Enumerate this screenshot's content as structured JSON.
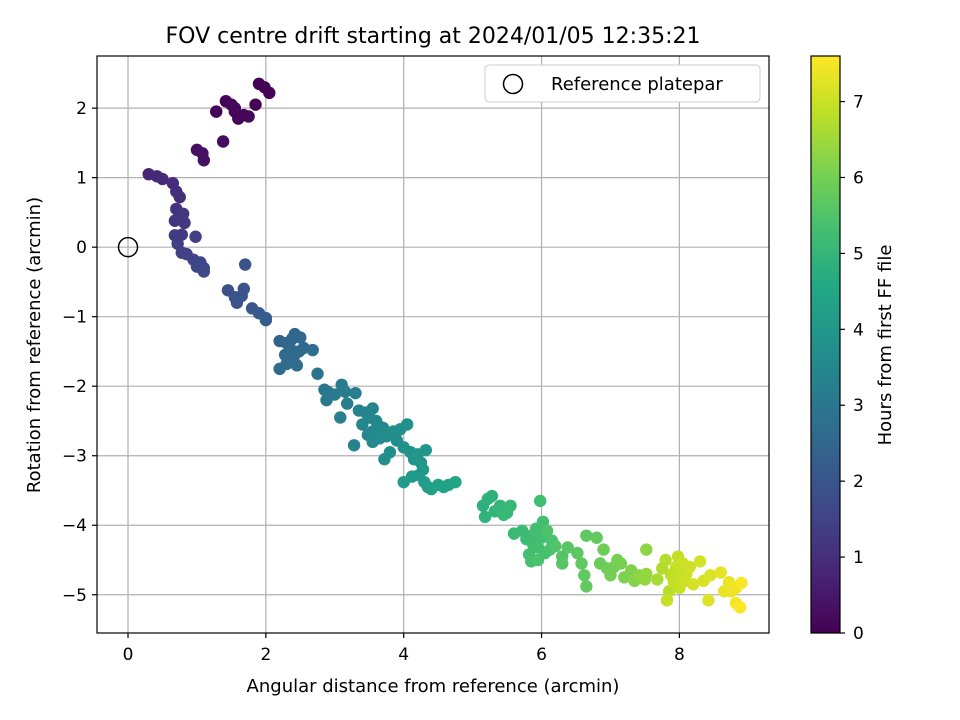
{
  "chart_data": {
    "type": "scatter",
    "title": "FOV centre drift starting at 2024/01/05 12:35:21",
    "xlabel": "Angular distance from reference (arcmin)",
    "ylabel": "Rotation from reference (arcmin)",
    "xlim": [
      -0.45,
      9.3
    ],
    "ylim": [
      -5.55,
      2.75
    ],
    "xticks": [
      0,
      2,
      4,
      6,
      8
    ],
    "yticks": [
      -5,
      -4,
      -3,
      -2,
      -1,
      0,
      1,
      2
    ],
    "xtick_labels": [
      "0",
      "2",
      "4",
      "6",
      "8"
    ],
    "ytick_labels": [
      "−5",
      "−4",
      "−3",
      "−2",
      "−1",
      "0",
      "1",
      "2"
    ],
    "grid": true,
    "legend": {
      "position": "top-right",
      "entries": [
        "Reference platepar"
      ]
    },
    "reference_point": {
      "x": 0,
      "y": 0
    },
    "colorbar": {
      "label": "Hours from first FF file",
      "colormap": "viridis",
      "range": [
        0,
        7.6
      ],
      "ticks": [
        0,
        1,
        2,
        3,
        4,
        5,
        6,
        7
      ],
      "tick_labels": [
        "0",
        "1",
        "2",
        "3",
        "4",
        "5",
        "6",
        "7"
      ]
    },
    "points": [
      [
        1.28,
        1.95,
        0.05
      ],
      [
        1.42,
        2.1,
        0.05
      ],
      [
        1.5,
        2.05,
        0.07
      ],
      [
        1.55,
        1.95,
        0.08
      ],
      [
        1.6,
        1.85,
        0.1
      ],
      [
        1.68,
        1.9,
        0.1
      ],
      [
        1.75,
        1.88,
        0.12
      ],
      [
        1.85,
        2.05,
        0.08
      ],
      [
        1.9,
        2.35,
        0.02
      ],
      [
        1.98,
        2.3,
        0.03
      ],
      [
        2.05,
        2.22,
        0.04
      ],
      [
        1.55,
        2.0,
        0.15
      ],
      [
        1.38,
        1.52,
        0.25
      ],
      [
        1.0,
        1.4,
        0.3
      ],
      [
        1.08,
        1.35,
        0.32
      ],
      [
        1.1,
        1.25,
        0.35
      ],
      [
        0.3,
        1.05,
        0.8
      ],
      [
        0.42,
        1.02,
        0.85
      ],
      [
        0.5,
        0.98,
        0.9
      ],
      [
        0.65,
        0.92,
        0.95
      ],
      [
        0.7,
        0.8,
        1.0
      ],
      [
        0.75,
        0.72,
        1.05
      ],
      [
        0.7,
        0.55,
        1.1
      ],
      [
        0.68,
        0.38,
        1.15
      ],
      [
        0.75,
        0.42,
        1.2
      ],
      [
        0.8,
        0.48,
        1.2
      ],
      [
        0.82,
        0.35,
        1.25
      ],
      [
        0.68,
        0.17,
        1.3
      ],
      [
        0.78,
        0.18,
        1.3
      ],
      [
        0.72,
        0.05,
        1.35
      ],
      [
        0.78,
        -0.08,
        1.4
      ],
      [
        0.85,
        -0.1,
        1.45
      ],
      [
        0.98,
        0.15,
        1.4
      ],
      [
        0.95,
        -0.18,
        1.5
      ],
      [
        1.05,
        -0.22,
        1.55
      ],
      [
        1.1,
        -0.3,
        1.6
      ],
      [
        1.1,
        -0.35,
        1.65
      ],
      [
        1.0,
        -0.28,
        1.6
      ],
      [
        1.45,
        -0.62,
        1.85
      ],
      [
        1.55,
        -0.72,
        1.9
      ],
      [
        1.58,
        -0.8,
        1.92
      ],
      [
        1.68,
        -0.6,
        1.95
      ],
      [
        1.7,
        -0.25,
        1.9
      ],
      [
        1.65,
        -0.7,
        2.0
      ],
      [
        1.8,
        -0.88,
        2.05
      ],
      [
        1.9,
        -0.95,
        2.1
      ],
      [
        2.0,
        -1.02,
        2.15
      ],
      [
        2.0,
        -1.05,
        2.2
      ],
      [
        2.2,
        -1.35,
        2.4
      ],
      [
        2.3,
        -1.38,
        2.45
      ],
      [
        2.38,
        -1.32,
        2.5
      ],
      [
        2.42,
        -1.25,
        2.5
      ],
      [
        2.5,
        -1.3,
        2.55
      ],
      [
        2.35,
        -1.45,
        2.55
      ],
      [
        2.28,
        -1.55,
        2.6
      ],
      [
        2.4,
        -1.6,
        2.6
      ],
      [
        2.48,
        -1.5,
        2.65
      ],
      [
        2.55,
        -1.45,
        2.6
      ],
      [
        2.2,
        -1.75,
        2.65
      ],
      [
        2.3,
        -1.68,
        2.7
      ],
      [
        2.45,
        -1.7,
        2.7
      ],
      [
        2.68,
        -1.48,
        2.75
      ],
      [
        2.75,
        -1.82,
        2.9
      ],
      [
        2.85,
        -2.05,
        3.0
      ],
      [
        2.9,
        -2.08,
        3.05
      ],
      [
        2.88,
        -2.2,
        3.05
      ],
      [
        3.0,
        -2.12,
        3.1
      ],
      [
        3.1,
        -1.98,
        3.1
      ],
      [
        3.15,
        -2.08,
        3.15
      ],
      [
        3.18,
        -2.25,
        3.2
      ],
      [
        3.08,
        -2.45,
        3.25
      ],
      [
        3.3,
        -2.1,
        3.2
      ],
      [
        3.35,
        -2.35,
        3.3
      ],
      [
        3.45,
        -2.38,
        3.35
      ],
      [
        3.55,
        -2.32,
        3.4
      ],
      [
        3.5,
        -2.45,
        3.4
      ],
      [
        3.6,
        -2.5,
        3.45
      ],
      [
        3.4,
        -2.55,
        3.45
      ],
      [
        3.48,
        -2.7,
        3.5
      ],
      [
        3.55,
        -2.65,
        3.55
      ],
      [
        3.65,
        -2.58,
        3.5
      ],
      [
        3.7,
        -2.6,
        3.55
      ],
      [
        3.65,
        -2.75,
        3.6
      ],
      [
        3.55,
        -2.8,
        3.6
      ],
      [
        3.75,
        -2.72,
        3.65
      ],
      [
        3.85,
        -2.65,
        3.7
      ],
      [
        3.9,
        -2.78,
        3.7
      ],
      [
        3.95,
        -2.62,
        3.75
      ],
      [
        4.05,
        -2.55,
        3.8
      ],
      [
        4.0,
        -2.88,
        3.8
      ],
      [
        3.8,
        -2.95,
        3.75
      ],
      [
        3.72,
        -3.05,
        3.75
      ],
      [
        4.1,
        -2.95,
        3.85
      ],
      [
        4.15,
        -3.05,
        3.9
      ],
      [
        4.2,
        -2.98,
        3.95
      ],
      [
        4.25,
        -3.1,
        3.95
      ],
      [
        4.32,
        -2.92,
        4.0
      ],
      [
        4.28,
        -3.2,
        4.05
      ],
      [
        4.22,
        -3.28,
        4.05
      ],
      [
        4.12,
        -3.3,
        4.1
      ],
      [
        4.0,
        -3.38,
        4.1
      ],
      [
        4.3,
        -3.38,
        4.15
      ],
      [
        4.35,
        -3.45,
        4.2
      ],
      [
        4.4,
        -3.48,
        4.25
      ],
      [
        4.5,
        -3.42,
        4.3
      ],
      [
        4.58,
        -3.45,
        4.35
      ],
      [
        4.65,
        -3.42,
        4.4
      ],
      [
        4.75,
        -3.38,
        4.45
      ],
      [
        3.28,
        -2.85,
        3.4
      ],
      [
        5.15,
        -3.72,
        4.8
      ],
      [
        5.22,
        -3.62,
        4.85
      ],
      [
        5.28,
        -3.58,
        4.85
      ],
      [
        5.18,
        -3.88,
        4.9
      ],
      [
        5.32,
        -3.8,
        4.95
      ],
      [
        5.4,
        -3.72,
        5.0
      ],
      [
        5.5,
        -3.82,
        5.0
      ],
      [
        5.55,
        -3.72,
        5.05
      ],
      [
        5.45,
        -3.85,
        5.05
      ],
      [
        5.6,
        -4.12,
        5.1
      ],
      [
        5.72,
        -4.08,
        5.15
      ],
      [
        5.78,
        -4.2,
        5.2
      ],
      [
        5.85,
        -4.15,
        5.2
      ],
      [
        5.88,
        -4.28,
        5.25
      ],
      [
        5.95,
        -4.32,
        5.3
      ],
      [
        6.0,
        -4.18,
        5.3
      ],
      [
        6.02,
        -3.95,
        5.3
      ],
      [
        5.98,
        -3.65,
        5.25
      ],
      [
        6.05,
        -4.4,
        5.35
      ],
      [
        6.12,
        -4.35,
        5.4
      ],
      [
        6.15,
        -4.22,
        5.4
      ],
      [
        5.82,
        -4.42,
        5.3
      ],
      [
        5.85,
        -4.52,
        5.35
      ],
      [
        5.95,
        -4.5,
        5.4
      ],
      [
        6.08,
        -4.08,
        5.45
      ],
      [
        5.92,
        -4.05,
        5.3
      ],
      [
        6.2,
        -4.3,
        5.5
      ],
      [
        6.3,
        -4.45,
        5.55
      ],
      [
        6.3,
        -4.55,
        5.6
      ],
      [
        6.38,
        -4.32,
        5.6
      ],
      [
        6.52,
        -4.4,
        5.65
      ],
      [
        6.58,
        -4.55,
        5.7
      ],
      [
        6.62,
        -4.72,
        5.7
      ],
      [
        6.65,
        -4.88,
        5.75
      ],
      [
        6.65,
        -4.15,
        5.7
      ],
      [
        6.8,
        -4.18,
        5.75
      ],
      [
        6.85,
        -4.55,
        5.85
      ],
      [
        6.95,
        -4.62,
        5.9
      ],
      [
        7.05,
        -4.6,
        5.95
      ],
      [
        7.0,
        -4.72,
        6.0
      ],
      [
        7.15,
        -4.55,
        6.0
      ],
      [
        7.2,
        -4.75,
        6.1
      ],
      [
        7.3,
        -4.65,
        6.15
      ],
      [
        7.35,
        -4.8,
        6.2
      ],
      [
        7.42,
        -4.72,
        6.3
      ],
      [
        7.5,
        -4.78,
        6.35
      ],
      [
        7.52,
        -4.35,
        6.3
      ],
      [
        7.52,
        -4.7,
        6.4
      ],
      [
        7.1,
        -4.5,
        6.05
      ],
      [
        6.9,
        -4.35,
        5.9
      ],
      [
        7.68,
        -4.78,
        6.6
      ],
      [
        7.75,
        -4.62,
        6.7
      ],
      [
        7.8,
        -4.5,
        6.75
      ],
      [
        7.85,
        -4.95,
        6.8
      ],
      [
        7.88,
        -4.72,
        6.85
      ],
      [
        7.92,
        -4.82,
        6.9
      ],
      [
        7.98,
        -4.45,
        6.9
      ],
      [
        8.0,
        -4.9,
        6.95
      ],
      [
        8.05,
        -4.55,
        7.0
      ],
      [
        8.1,
        -4.7,
        7.0
      ],
      [
        8.15,
        -4.6,
        7.05
      ],
      [
        8.08,
        -4.8,
        7.05
      ],
      [
        7.95,
        -4.6,
        7.0
      ],
      [
        7.82,
        -5.08,
        6.95
      ],
      [
        8.2,
        -4.85,
        7.1
      ],
      [
        8.3,
        -4.52,
        7.1
      ],
      [
        8.35,
        -4.8,
        7.15
      ],
      [
        8.45,
        -4.72,
        7.2
      ],
      [
        8.42,
        -5.08,
        7.25
      ],
      [
        8.6,
        -4.68,
        7.3
      ],
      [
        8.65,
        -4.95,
        7.35
      ],
      [
        8.75,
        -4.95,
        7.4
      ],
      [
        8.72,
        -4.82,
        7.4
      ],
      [
        8.82,
        -4.9,
        7.45
      ],
      [
        8.82,
        -5.12,
        7.5
      ],
      [
        8.88,
        -5.18,
        7.55
      ],
      [
        8.9,
        -4.83,
        7.55
      ],
      [
        7.9,
        -4.7,
        6.85
      ],
      [
        8.02,
        -4.68,
        6.95
      ]
    ]
  }
}
